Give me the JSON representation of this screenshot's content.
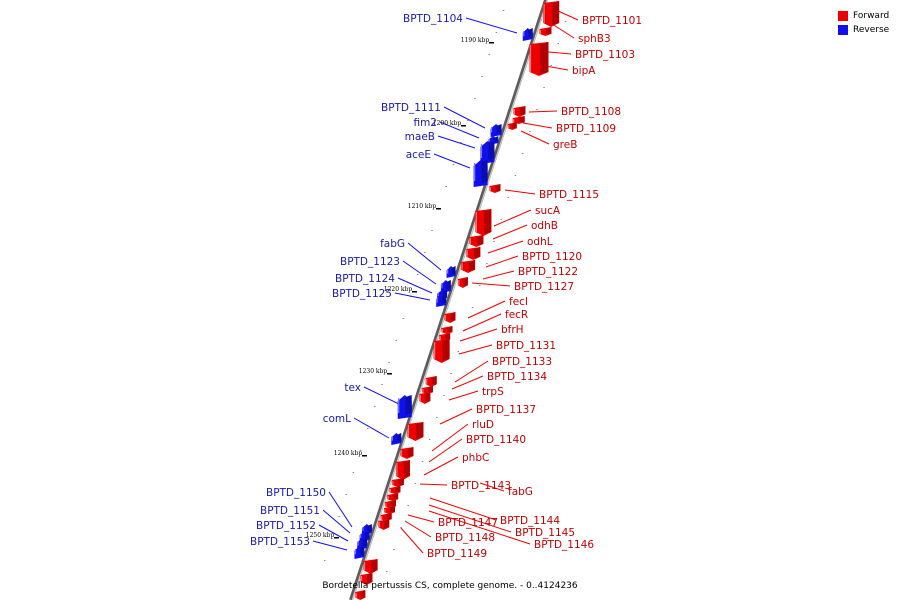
{
  "caption": "Bordetella pertussis CS, complete genome. - 0..4124236",
  "colors": {
    "forward": "#ee0000",
    "reverse": "#1010ee",
    "axis": "#7a7a7a"
  },
  "legend": [
    {
      "label": "Forward",
      "color": "#ee0000"
    },
    {
      "label": "Reverse",
      "color": "#1010ee"
    }
  ],
  "scale_labels": [
    "1190 kbp",
    "1200 kbp",
    "1210 kbp",
    "1220 kbp",
    "1230 kbp",
    "1240 kbp",
    "1250 kbp"
  ],
  "forward_labels": [
    "BPTD_1101",
    "sphB3",
    "BPTD_1103",
    "bipA",
    "BPTD_1108",
    "BPTD_1109",
    "greB",
    "BPTD_1115",
    "sucA",
    "odhB",
    "odhL",
    "BPTD_1120",
    "BPTD_1122",
    "BPTD_1127",
    "fecI",
    "fecR",
    "bfrH",
    "BPTD_1131",
    "BPTD_1133",
    "BPTD_1134",
    "trpS",
    "BPTD_1137",
    "rluD",
    "BPTD_1140",
    "phbC",
    "BPTD_1143",
    "fabG",
    "BPTD_1144",
    "BPTD_1145",
    "BPTD_1146",
    "BPTD_1147",
    "BPTD_1148",
    "BPTD_1149"
  ],
  "reverse_labels": [
    "BPTD_1104",
    "BPTD_1111",
    "fim2",
    "maeB",
    "aceE",
    "fabG",
    "BPTD_1123",
    "BPTD_1124",
    "BPTD_1125",
    "tex",
    "comL",
    "BPTD_1150",
    "BPTD_1151",
    "BPTD_1152",
    "BPTD_1153"
  ]
}
